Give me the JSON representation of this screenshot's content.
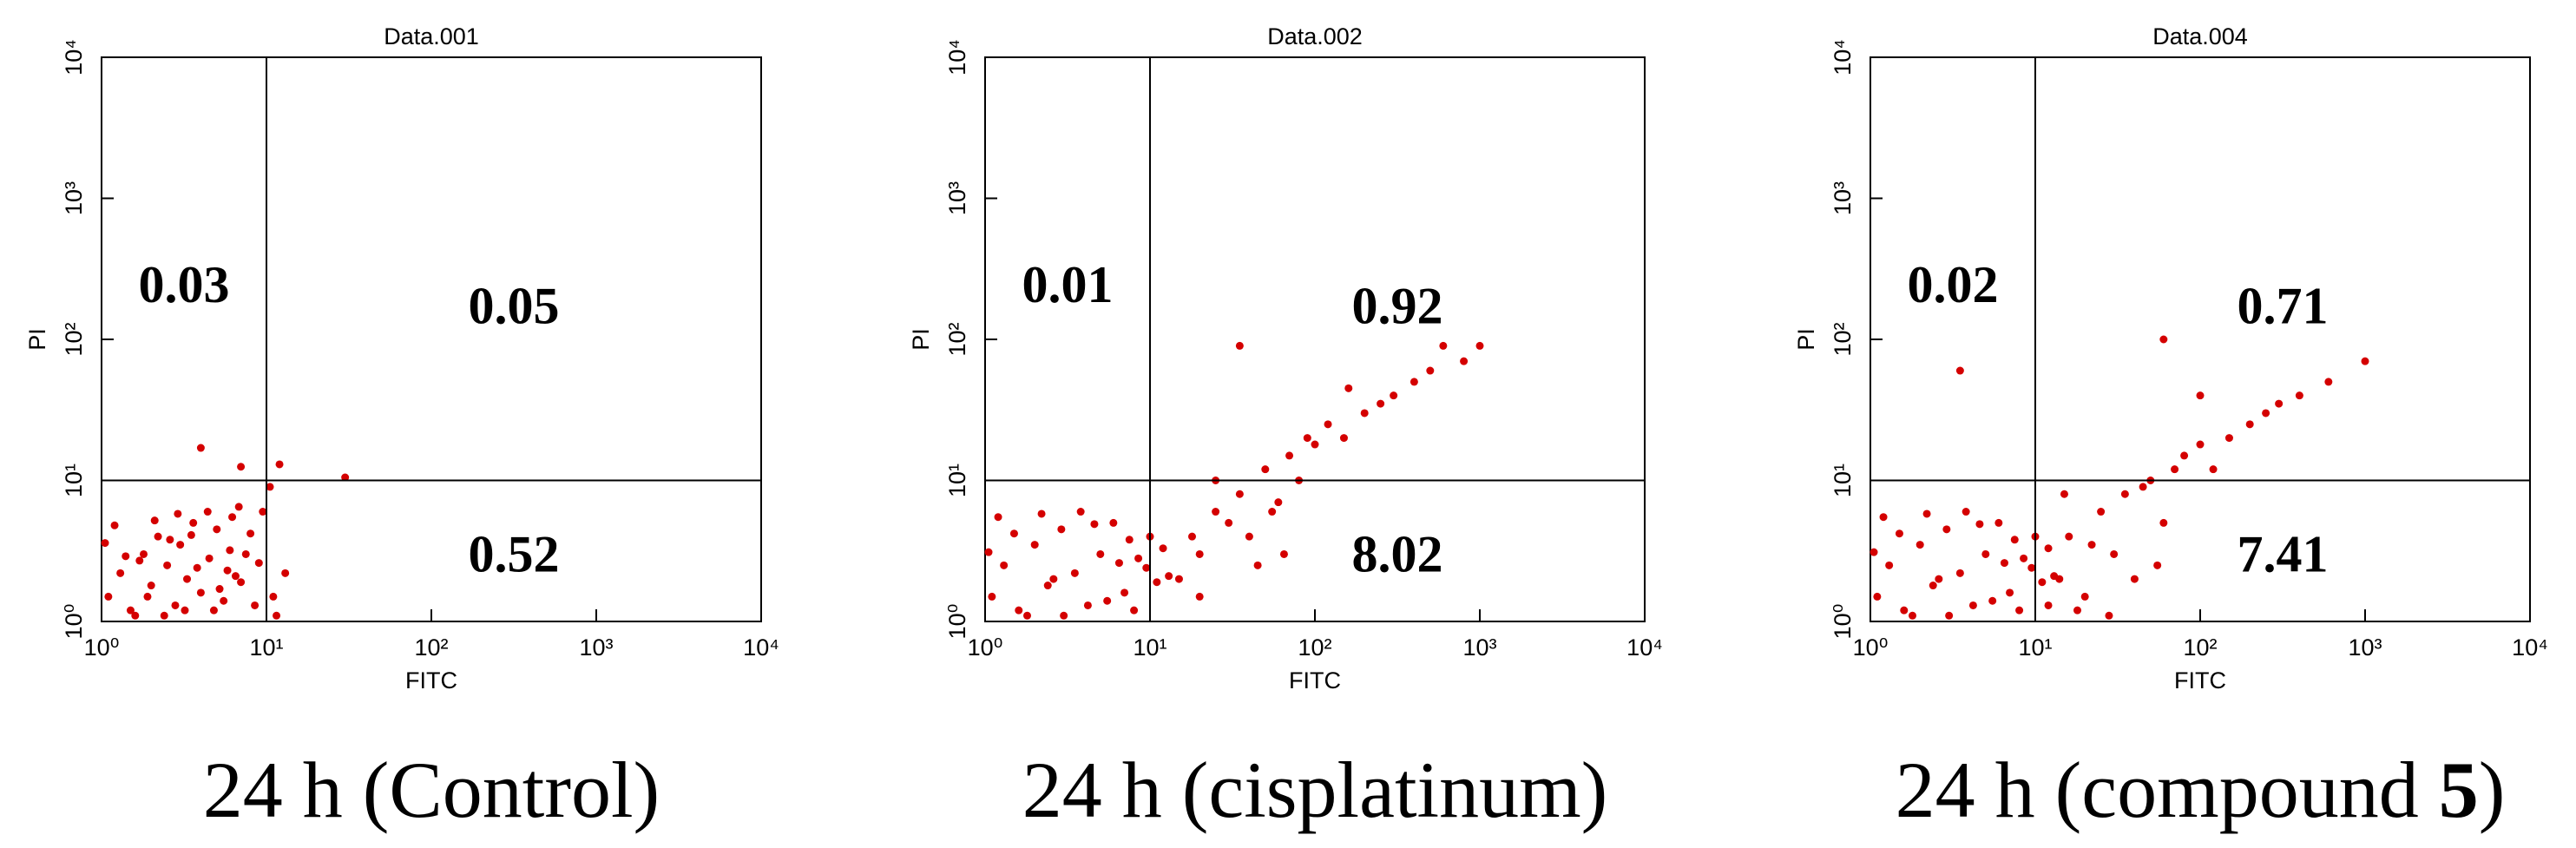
{
  "chart_data": [
    {
      "type": "scatter",
      "title": "Data.001",
      "xlabel": "FITC",
      "ylabel": "PI",
      "xscale": "log",
      "yscale": "log",
      "color": "#d40000",
      "xlim": [
        1,
        10000
      ],
      "ylim": [
        1,
        10000
      ],
      "xticks": [
        {
          "value": 1,
          "label": "10⁰"
        },
        {
          "value": 10,
          "label": "10¹"
        },
        {
          "value": 100,
          "label": "10²"
        },
        {
          "value": 1000,
          "label": "10³"
        },
        {
          "value": 10000,
          "label": "10⁴"
        }
      ],
      "yticks": [
        {
          "value": 1,
          "label": "10⁰"
        },
        {
          "value": 10,
          "label": "10¹"
        },
        {
          "value": 100,
          "label": "10²"
        },
        {
          "value": 1000,
          "label": "10³"
        },
        {
          "value": 10000,
          "label": "10⁴"
        }
      ],
      "gates": {
        "x": 10,
        "y": 10
      },
      "annotations": [
        {
          "text": "0.03",
          "quadrant": "upper-left"
        },
        {
          "text": "0.05",
          "quadrant": "upper-right"
        },
        {
          "text": "0.52",
          "quadrant": "lower-right"
        }
      ],
      "x": [
        1.1,
        1.3,
        1.5,
        1.8,
        2,
        2.2,
        2.5,
        2.8,
        3,
        3.3,
        3.6,
        4,
        4.5,
        5,
        5.5,
        6,
        6.5,
        7,
        8,
        9,
        1.2,
        1.6,
        2.1,
        2.6,
        3.2,
        3.8,
        4.4,
        5.2,
        6.2,
        7.5,
        1.4,
        1.9,
        2.4,
        3.5,
        4.8,
        6.8,
        1.05,
        1.7,
        2.9,
        5.8,
        10.5,
        11,
        12,
        13,
        9.5,
        4,
        7,
        30,
        11.5,
        8.5
      ],
      "y": [
        1.5,
        2.2,
        1.2,
        3,
        1.8,
        4,
        2.5,
        1.3,
        3.5,
        2,
        5,
        1.6,
        2.8,
        4.5,
        1.4,
        3.2,
        2.1,
        1.9,
        4.2,
        2.6,
        4.8,
        1.1,
        5.2,
        3.8,
        1.2,
        2.4,
        6,
        1.7,
        5.5,
        3,
        2.9,
        1.5,
        1.1,
        4.1,
        1.2,
        6.5,
        3.6,
        2.7,
        5.8,
        2.3,
        9,
        1.5,
        13,
        2.2,
        6,
        17,
        12.5,
        10.5,
        1.1,
        1.3
      ],
      "caption": [
        {
          "text": "24 h (Control)"
        }
      ]
    },
    {
      "type": "scatter",
      "title": "Data.002",
      "xlabel": "FITC",
      "ylabel": "PI",
      "xscale": "log",
      "yscale": "log",
      "color": "#d40000",
      "xlim": [
        1,
        10000
      ],
      "ylim": [
        1,
        10000
      ],
      "xticks": [
        {
          "value": 1,
          "label": "10⁰"
        },
        {
          "value": 10,
          "label": "10¹"
        },
        {
          "value": 100,
          "label": "10²"
        },
        {
          "value": 1000,
          "label": "10³"
        },
        {
          "value": 10000,
          "label": "10⁴"
        }
      ],
      "yticks": [
        {
          "value": 1,
          "label": "10⁰"
        },
        {
          "value": 10,
          "label": "10¹"
        },
        {
          "value": 100,
          "label": "10²"
        },
        {
          "value": 1000,
          "label": "10³"
        },
        {
          "value": 10000,
          "label": "10⁴"
        }
      ],
      "gates": {
        "x": 10,
        "y": 10
      },
      "annotations": [
        {
          "text": "0.01",
          "quadrant": "upper-left"
        },
        {
          "text": "0.92",
          "quadrant": "upper-right"
        },
        {
          "text": "8.02",
          "quadrant": "lower-right"
        }
      ],
      "x": [
        1.1,
        1.3,
        1.6,
        2,
        2.4,
        2.9,
        3.5,
        4.2,
        5,
        6,
        7,
        8.5,
        10,
        11,
        12,
        1.2,
        1.8,
        2.6,
        3.8,
        5.5,
        7.5,
        9.5,
        1.5,
        3,
        6.5,
        1.05,
        2.2,
        4.6,
        8,
        13,
        15,
        18,
        20,
        25,
        30,
        35,
        40,
        50,
        60,
        70,
        80,
        100,
        120,
        150,
        200,
        250,
        300,
        400,
        500,
        600,
        800,
        1000,
        35,
        45,
        55,
        20,
        25,
        65,
        90,
        160
      ],
      "y": [
        1.5,
        2.5,
        1.2,
        3.5,
        1.8,
        4.5,
        2.2,
        1.3,
        3,
        5,
        1.6,
        2.8,
        4,
        1.9,
        3.3,
        5.5,
        1.1,
        2,
        6,
        1.4,
        3.8,
        2.4,
        4.2,
        1.1,
        2.6,
        3.1,
        5.8,
        4.9,
        1.2,
        2.1,
        2,
        4,
        3,
        6,
        5,
        8,
        4,
        12,
        7,
        15,
        10,
        18,
        25,
        20,
        30,
        35,
        40,
        50,
        60,
        90,
        70,
        90,
        90,
        2.5,
        6,
        1.5,
        10,
        3,
        20,
        45
      ],
      "caption": [
        {
          "text": "24 h (cisplatinum)"
        }
      ]
    },
    {
      "type": "scatter",
      "title": "Data.004",
      "xlabel": "FITC",
      "ylabel": "PI",
      "xscale": "log",
      "yscale": "log",
      "color": "#d40000",
      "xlim": [
        1,
        10000
      ],
      "ylim": [
        1,
        10000
      ],
      "xticks": [
        {
          "value": 1,
          "label": "10⁰"
        },
        {
          "value": 10,
          "label": "10¹"
        },
        {
          "value": 100,
          "label": "10²"
        },
        {
          "value": 1000,
          "label": "10³"
        },
        {
          "value": 10000,
          "label": "10⁴"
        }
      ],
      "yticks": [
        {
          "value": 1,
          "label": "10⁰"
        },
        {
          "value": 10,
          "label": "10¹"
        },
        {
          "value": 100,
          "label": "10²"
        },
        {
          "value": 1000,
          "label": "10³"
        },
        {
          "value": 10000,
          "label": "10⁴"
        }
      ],
      "gates": {
        "x": 10,
        "y": 10
      },
      "annotations": [
        {
          "text": "0.02",
          "quadrant": "upper-left"
        },
        {
          "text": "0.71",
          "quadrant": "upper-right"
        },
        {
          "text": "7.41",
          "quadrant": "lower-right"
        }
      ],
      "x": [
        1.1,
        1.3,
        1.6,
        2,
        2.4,
        2.9,
        3.5,
        4.2,
        5,
        6,
        7,
        8.5,
        10,
        11,
        12,
        1.2,
        1.8,
        2.6,
        3.8,
        5.5,
        7.5,
        9.5,
        1.5,
        3,
        6.5,
        1.05,
        2.2,
        4.6,
        8,
        13,
        14,
        16,
        20,
        25,
        30,
        35,
        40,
        50,
        60,
        70,
        80,
        100,
        120,
        150,
        200,
        250,
        300,
        400,
        600,
        1000,
        3.5,
        60,
        100,
        18,
        22,
        45,
        28,
        55,
        12,
        15
      ],
      "y": [
        1.5,
        2.5,
        1.2,
        3.5,
        1.8,
        4.5,
        2.2,
        1.3,
        3,
        5,
        1.6,
        2.8,
        4,
        1.9,
        3.3,
        5.5,
        1.1,
        2,
        6,
        1.4,
        3.8,
        2.4,
        4.2,
        1.1,
        2.6,
        3.1,
        5.8,
        4.9,
        1.2,
        2.1,
        2,
        4,
        1.5,
        6,
        3,
        8,
        2,
        10,
        5,
        12,
        15,
        18,
        12,
        20,
        25,
        30,
        35,
        40,
        50,
        70,
        60,
        100,
        40,
        1.2,
        3.5,
        9,
        1.1,
        2.5,
        1.3,
        8
      ],
      "caption": [
        {
          "text": "24 h (compound "
        },
        {
          "text": "5",
          "bold": true
        },
        {
          "text": ")"
        }
      ]
    }
  ]
}
